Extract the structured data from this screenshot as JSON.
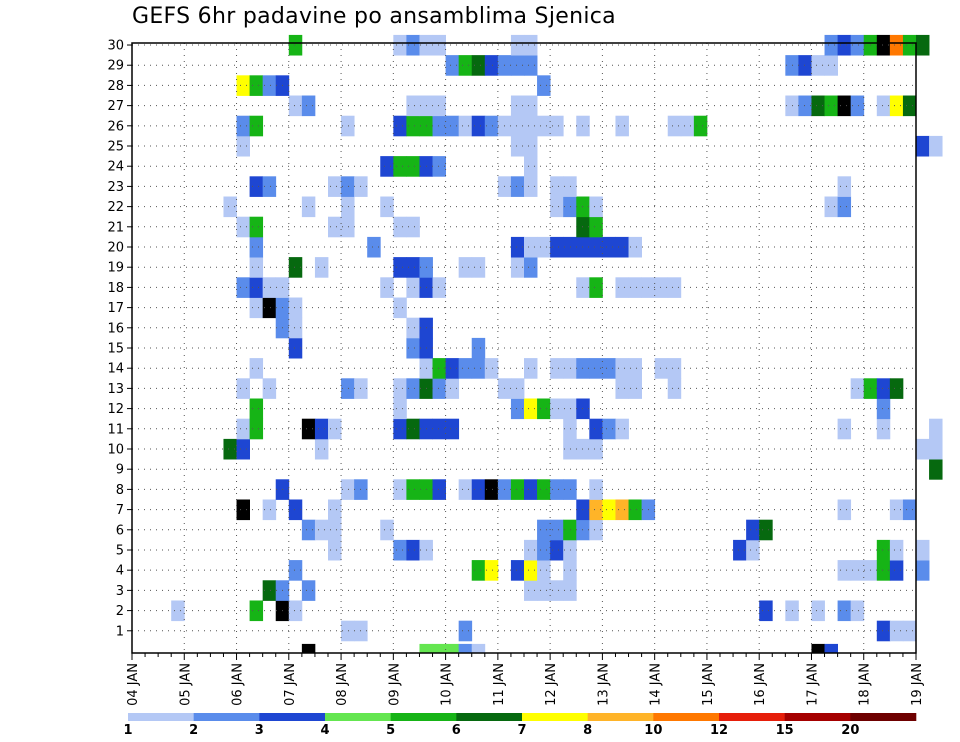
{
  "title": "GEFS 6hr padavine po ansamblima Sjenica",
  "chart_data": {
    "type": "heatmap",
    "title": "GEFS 6hr padavine po ansamblima Sjenica",
    "xlabel": "",
    "ylabel": "",
    "x_tick_labels": [
      "04 JAN",
      "05 JAN",
      "06 JAN",
      "07 JAN",
      "08 JAN",
      "09 JAN",
      "10 JAN",
      "11 JAN",
      "12 JAN",
      "13 JAN",
      "14 JAN",
      "15 JAN",
      "16 JAN",
      "17 JAN",
      "18 JAN",
      "19 JAN"
    ],
    "y_tick_labels": [
      "1",
      "2",
      "3",
      "4",
      "5",
      "6",
      "7",
      "8",
      "9",
      "10",
      "11",
      "12",
      "13",
      "14",
      "15",
      "16",
      "17",
      "18",
      "19",
      "20",
      "21",
      "22",
      "23",
      "24",
      "25",
      "26",
      "27",
      "28",
      "29",
      "30"
    ],
    "ylim": [
      0,
      30
    ],
    "grid": true,
    "steps_per_day": 4,
    "colorbar": {
      "levels": [
        "1",
        "2",
        "3",
        "4",
        "5",
        "6",
        "7",
        "8",
        "10",
        "12",
        "15",
        "20"
      ],
      "colors": [
        "#b4c8f5",
        "#5a8ceb",
        "#1e46d2",
        "#64e650",
        "#16b416",
        "#06690f",
        "#ffff00",
        "#ffb428",
        "#ff7800",
        "#e61e0a",
        "#a50000",
        "#6e0000"
      ]
    },
    "levels_grid_note": "",
    "cells": [
      [
        3,
        2,
        1
      ],
      [
        16,
        1,
        1
      ],
      [
        17,
        1,
        1
      ],
      [
        25,
        1,
        2
      ],
      [
        57,
        1,
        3
      ],
      [
        58,
        1,
        1
      ],
      [
        59,
        1,
        1
      ],
      [
        69,
        1,
        3
      ],
      [
        70,
        1,
        1
      ],
      [
        9,
        2,
        5
      ],
      [
        11,
        2,
        14
      ],
      [
        12,
        2,
        1
      ],
      [
        48,
        2,
        3
      ],
      [
        50,
        2,
        1
      ],
      [
        52,
        2,
        1
      ],
      [
        54,
        2,
        2
      ],
      [
        55,
        2,
        1
      ],
      [
        10,
        3,
        6
      ],
      [
        11,
        3,
        2
      ],
      [
        13,
        3,
        2
      ],
      [
        30,
        3,
        1
      ],
      [
        31,
        3,
        1
      ],
      [
        32,
        3,
        1
      ],
      [
        33,
        3,
        1
      ],
      [
        12,
        4,
        2
      ],
      [
        26,
        4,
        5
      ],
      [
        27,
        4,
        7
      ],
      [
        29,
        4,
        3
      ],
      [
        30,
        4,
        7
      ],
      [
        31,
        4,
        1
      ],
      [
        33,
        4,
        1
      ],
      [
        54,
        4,
        1
      ],
      [
        55,
        4,
        1
      ],
      [
        56,
        4,
        1
      ],
      [
        57,
        4,
        5
      ],
      [
        58,
        4,
        3
      ],
      [
        60,
        4,
        2
      ],
      [
        15,
        5,
        1
      ],
      [
        20,
        5,
        2
      ],
      [
        21,
        5,
        3
      ],
      [
        22,
        5,
        1
      ],
      [
        30,
        5,
        1
      ],
      [
        31,
        5,
        2
      ],
      [
        32,
        5,
        3
      ],
      [
        33,
        5,
        1
      ],
      [
        46,
        5,
        3
      ],
      [
        47,
        5,
        1
      ],
      [
        57,
        5,
        5
      ],
      [
        58,
        5,
        1
      ],
      [
        60,
        5,
        1
      ],
      [
        13,
        6,
        2
      ],
      [
        14,
        6,
        1
      ],
      [
        15,
        6,
        1
      ],
      [
        19,
        6,
        1
      ],
      [
        31,
        6,
        2
      ],
      [
        32,
        6,
        2
      ],
      [
        33,
        6,
        5
      ],
      [
        34,
        6,
        2
      ],
      [
        35,
        6,
        1
      ],
      [
        47,
        6,
        3
      ],
      [
        48,
        6,
        6
      ],
      [
        8,
        7,
        14
      ],
      [
        10,
        7,
        1
      ],
      [
        12,
        7,
        3
      ],
      [
        15,
        7,
        1
      ],
      [
        34,
        7,
        3
      ],
      [
        35,
        7,
        8
      ],
      [
        36,
        7,
        7
      ],
      [
        37,
        7,
        8
      ],
      [
        38,
        7,
        5
      ],
      [
        39,
        7,
        2
      ],
      [
        54,
        7,
        1
      ],
      [
        58,
        7,
        1
      ],
      [
        59,
        7,
        2
      ],
      [
        11,
        8,
        3
      ],
      [
        16,
        8,
        1
      ],
      [
        17,
        8,
        2
      ],
      [
        20,
        8,
        1
      ],
      [
        21,
        8,
        5
      ],
      [
        22,
        8,
        5
      ],
      [
        23,
        8,
        3
      ],
      [
        25,
        8,
        1
      ],
      [
        26,
        8,
        3
      ],
      [
        27,
        8,
        14
      ],
      [
        28,
        8,
        2
      ],
      [
        29,
        8,
        5
      ],
      [
        30,
        8,
        3
      ],
      [
        31,
        8,
        5
      ],
      [
        32,
        8,
        2
      ],
      [
        33,
        8,
        2
      ],
      [
        35,
        8,
        1
      ],
      [
        61,
        9,
        6
      ],
      [
        7,
        10,
        6
      ],
      [
        8,
        10,
        3
      ],
      [
        14,
        10,
        1
      ],
      [
        33,
        10,
        1
      ],
      [
        34,
        10,
        1
      ],
      [
        35,
        10,
        1
      ],
      [
        60,
        10,
        1
      ],
      [
        61,
        10,
        1
      ],
      [
        8,
        11,
        1
      ],
      [
        9,
        11,
        5
      ],
      [
        13,
        11,
        14
      ],
      [
        14,
        11,
        3
      ],
      [
        15,
        11,
        1
      ],
      [
        20,
        11,
        3
      ],
      [
        21,
        11,
        6
      ],
      [
        22,
        11,
        3
      ],
      [
        23,
        11,
        3
      ],
      [
        24,
        11,
        3
      ],
      [
        33,
        11,
        1
      ],
      [
        35,
        11,
        3
      ],
      [
        36,
        11,
        2
      ],
      [
        37,
        11,
        1
      ],
      [
        54,
        11,
        1
      ],
      [
        57,
        11,
        1
      ],
      [
        61,
        11,
        1
      ],
      [
        9,
        12,
        5
      ],
      [
        20,
        12,
        1
      ],
      [
        29,
        12,
        2
      ],
      [
        30,
        12,
        7
      ],
      [
        31,
        12,
        5
      ],
      [
        32,
        12,
        1
      ],
      [
        33,
        12,
        1
      ],
      [
        34,
        12,
        3
      ],
      [
        57,
        12,
        2
      ],
      [
        8,
        13,
        1
      ],
      [
        10,
        13,
        1
      ],
      [
        16,
        13,
        2
      ],
      [
        17,
        13,
        1
      ],
      [
        20,
        13,
        1
      ],
      [
        21,
        13,
        2
      ],
      [
        22,
        13,
        6
      ],
      [
        23,
        13,
        2
      ],
      [
        24,
        13,
        1
      ],
      [
        28,
        13,
        1
      ],
      [
        29,
        13,
        1
      ],
      [
        37,
        13,
        1
      ],
      [
        38,
        13,
        1
      ],
      [
        41,
        13,
        1
      ],
      [
        55,
        13,
        1
      ],
      [
        56,
        13,
        5
      ],
      [
        57,
        13,
        3
      ],
      [
        58,
        13,
        6
      ],
      [
        9,
        14,
        1
      ],
      [
        22,
        14,
        1
      ],
      [
        23,
        14,
        5
      ],
      [
        24,
        14,
        3
      ],
      [
        25,
        14,
        2
      ],
      [
        26,
        14,
        2
      ],
      [
        27,
        14,
        1
      ],
      [
        30,
        14,
        1
      ],
      [
        32,
        14,
        1
      ],
      [
        33,
        14,
        1
      ],
      [
        34,
        14,
        2
      ],
      [
        35,
        14,
        2
      ],
      [
        36,
        14,
        2
      ],
      [
        37,
        14,
        1
      ],
      [
        38,
        14,
        1
      ],
      [
        40,
        14,
        1
      ],
      [
        41,
        14,
        1
      ],
      [
        12,
        15,
        3
      ],
      [
        21,
        15,
        2
      ],
      [
        22,
        15,
        3
      ],
      [
        26,
        15,
        2
      ],
      [
        11,
        16,
        2
      ],
      [
        12,
        16,
        1
      ],
      [
        21,
        16,
        1
      ],
      [
        22,
        16,
        3
      ],
      [
        9,
        17,
        1
      ],
      [
        10,
        17,
        14
      ],
      [
        11,
        17,
        2
      ],
      [
        12,
        17,
        1
      ],
      [
        20,
        17,
        1
      ],
      [
        8,
        18,
        2
      ],
      [
        9,
        18,
        3
      ],
      [
        10,
        18,
        1
      ],
      [
        11,
        18,
        1
      ],
      [
        19,
        18,
        1
      ],
      [
        21,
        18,
        1
      ],
      [
        22,
        18,
        3
      ],
      [
        23,
        18,
        1
      ],
      [
        34,
        18,
        1
      ],
      [
        35,
        18,
        5
      ],
      [
        37,
        18,
        1
      ],
      [
        38,
        18,
        1
      ],
      [
        39,
        18,
        1
      ],
      [
        40,
        18,
        1
      ],
      [
        41,
        18,
        1
      ],
      [
        9,
        19,
        1
      ],
      [
        12,
        19,
        6
      ],
      [
        14,
        19,
        1
      ],
      [
        20,
        19,
        3
      ],
      [
        21,
        19,
        3
      ],
      [
        22,
        19,
        2
      ],
      [
        25,
        19,
        1
      ],
      [
        26,
        19,
        1
      ],
      [
        29,
        19,
        1
      ],
      [
        30,
        19,
        2
      ],
      [
        9,
        20,
        2
      ],
      [
        18,
        20,
        2
      ],
      [
        29,
        20,
        3
      ],
      [
        30,
        20,
        1
      ],
      [
        31,
        20,
        1
      ],
      [
        32,
        20,
        3
      ],
      [
        33,
        20,
        3
      ],
      [
        34,
        20,
        3
      ],
      [
        35,
        20,
        3
      ],
      [
        36,
        20,
        3
      ],
      [
        37,
        20,
        3
      ],
      [
        38,
        20,
        1
      ],
      [
        8,
        21,
        1
      ],
      [
        9,
        21,
        5
      ],
      [
        15,
        21,
        1
      ],
      [
        16,
        21,
        1
      ],
      [
        20,
        21,
        1
      ],
      [
        21,
        21,
        1
      ],
      [
        34,
        21,
        6
      ],
      [
        35,
        21,
        5
      ],
      [
        7,
        22,
        1
      ],
      [
        13,
        22,
        1
      ],
      [
        16,
        22,
        1
      ],
      [
        19,
        22,
        1
      ],
      [
        32,
        22,
        1
      ],
      [
        33,
        22,
        2
      ],
      [
        34,
        22,
        5
      ],
      [
        35,
        22,
        1
      ],
      [
        53,
        22,
        1
      ],
      [
        54,
        22,
        2
      ],
      [
        9,
        23,
        3
      ],
      [
        10,
        23,
        2
      ],
      [
        15,
        23,
        1
      ],
      [
        16,
        23,
        2
      ],
      [
        17,
        23,
        1
      ],
      [
        28,
        23,
        1
      ],
      [
        29,
        23,
        2
      ],
      [
        30,
        23,
        1
      ],
      [
        32,
        23,
        1
      ],
      [
        33,
        23,
        1
      ],
      [
        54,
        23,
        1
      ],
      [
        19,
        24,
        3
      ],
      [
        20,
        24,
        5
      ],
      [
        21,
        24,
        5
      ],
      [
        22,
        24,
        3
      ],
      [
        23,
        24,
        2
      ],
      [
        30,
        24,
        1
      ],
      [
        8,
        25,
        1
      ],
      [
        29,
        25,
        1
      ],
      [
        30,
        25,
        1
      ],
      [
        60,
        25,
        3
      ],
      [
        61,
        25,
        1
      ],
      [
        8,
        26,
        2
      ],
      [
        9,
        26,
        5
      ],
      [
        16,
        26,
        1
      ],
      [
        20,
        26,
        3
      ],
      [
        21,
        26,
        5
      ],
      [
        22,
        26,
        5
      ],
      [
        23,
        26,
        2
      ],
      [
        24,
        26,
        2
      ],
      [
        25,
        26,
        1
      ],
      [
        26,
        26,
        3
      ],
      [
        27,
        26,
        2
      ],
      [
        28,
        26,
        1
      ],
      [
        29,
        26,
        1
      ],
      [
        30,
        26,
        1
      ],
      [
        31,
        26,
        1
      ],
      [
        32,
        26,
        1
      ],
      [
        34,
        26,
        1
      ],
      [
        37,
        26,
        1
      ],
      [
        41,
        26,
        1
      ],
      [
        42,
        26,
        1
      ],
      [
        43,
        26,
        5
      ],
      [
        12,
        27,
        1
      ],
      [
        13,
        27,
        2
      ],
      [
        21,
        27,
        1
      ],
      [
        22,
        27,
        1
      ],
      [
        23,
        27,
        1
      ],
      [
        29,
        27,
        1
      ],
      [
        30,
        27,
        1
      ],
      [
        50,
        27,
        1
      ],
      [
        51,
        27,
        2
      ],
      [
        52,
        27,
        6
      ],
      [
        53,
        27,
        5
      ],
      [
        54,
        27,
        14
      ],
      [
        55,
        27,
        2
      ],
      [
        57,
        27,
        1
      ],
      [
        58,
        27,
        7
      ],
      [
        59,
        27,
        6
      ],
      [
        8,
        28,
        7
      ],
      [
        9,
        28,
        5
      ],
      [
        10,
        28,
        2
      ],
      [
        11,
        28,
        3
      ],
      [
        31,
        28,
        2
      ],
      [
        24,
        29,
        2
      ],
      [
        25,
        29,
        5
      ],
      [
        26,
        29,
        6
      ],
      [
        27,
        29,
        3
      ],
      [
        28,
        29,
        2
      ],
      [
        29,
        29,
        2
      ],
      [
        30,
        29,
        2
      ],
      [
        50,
        29,
        2
      ],
      [
        51,
        29,
        3
      ],
      [
        52,
        29,
        1
      ],
      [
        53,
        29,
        1
      ],
      [
        12,
        30,
        5
      ],
      [
        20,
        30,
        1
      ],
      [
        21,
        30,
        2
      ],
      [
        22,
        30,
        1
      ],
      [
        23,
        30,
        1
      ],
      [
        29,
        30,
        1
      ],
      [
        30,
        30,
        1
      ],
      [
        53,
        30,
        2
      ],
      [
        54,
        30,
        3
      ],
      [
        55,
        30,
        2
      ],
      [
        56,
        30,
        5
      ],
      [
        57,
        30,
        14
      ],
      [
        58,
        30,
        9
      ],
      [
        59,
        30,
        5
      ],
      [
        60,
        30,
        6
      ],
      [
        13,
        0,
        14
      ],
      [
        22,
        0,
        4
      ],
      [
        23,
        0,
        4
      ],
      [
        24,
        0,
        4
      ],
      [
        25,
        0,
        2
      ],
      [
        26,
        0,
        1
      ],
      [
        52,
        0,
        14
      ],
      [
        53,
        0,
        3
      ]
    ]
  }
}
